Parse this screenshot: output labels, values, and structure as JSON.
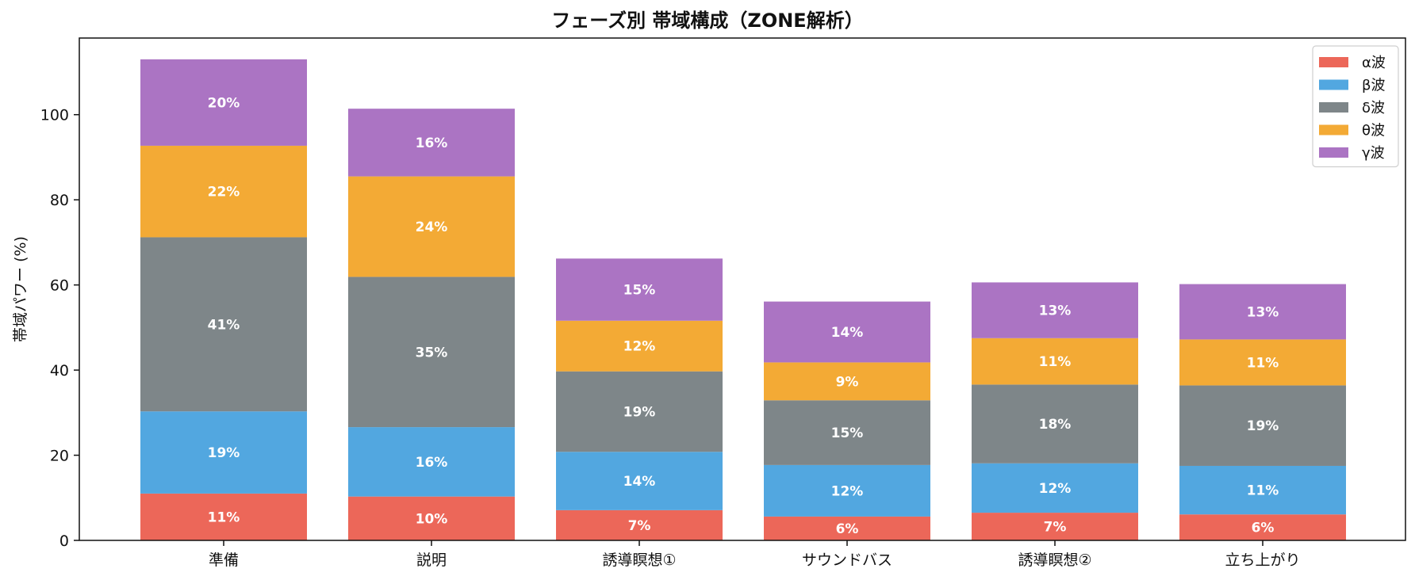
{
  "chart_data": {
    "type": "bar",
    "stacked": true,
    "title": "フェーズ別 帯域構成（ZONE解析）",
    "ylabel": "帯域パワー (%)",
    "xlabel": "",
    "ylim": [
      0,
      118
    ],
    "yticks": [
      0,
      20,
      40,
      60,
      80,
      100
    ],
    "legend_position": "top-right",
    "grid": false,
    "categories": [
      "準備",
      "説明",
      "誘導瞑想①",
      "サウンドバス",
      "誘導瞑想②",
      "立ち上がり"
    ],
    "series": [
      {
        "name": "α波",
        "color": "#ec6759",
        "values": [
          11,
          10.3,
          7.1,
          5.6,
          6.5,
          6.1
        ],
        "labels": [
          "11%",
          "10%",
          "7%",
          "6%",
          "7%",
          "6%"
        ]
      },
      {
        "name": "β波",
        "color": "#52a7e0",
        "values": [
          19.3,
          16.3,
          13.7,
          12.1,
          11.6,
          11.4
        ],
        "labels": [
          "19%",
          "16%",
          "14%",
          "12%",
          "12%",
          "11%"
        ]
      },
      {
        "name": "δ波",
        "color": "#7e8689",
        "values": [
          40.9,
          35.3,
          18.9,
          15.2,
          18.5,
          18.9
        ],
        "labels": [
          "41%",
          "35%",
          "19%",
          "15%",
          "18%",
          "19%"
        ]
      },
      {
        "name": "θ波",
        "color": "#f3aa35",
        "values": [
          21.5,
          23.6,
          11.9,
          8.9,
          10.9,
          10.8
        ],
        "labels": [
          "22%",
          "24%",
          "12%",
          "9%",
          "11%",
          "11%"
        ]
      },
      {
        "name": "γ波",
        "color": "#ab74c3",
        "values": [
          20.3,
          15.9,
          14.6,
          14.3,
          13.1,
          13.0
        ],
        "labels": [
          "20%",
          "16%",
          "15%",
          "14%",
          "13%",
          "13%"
        ]
      }
    ]
  }
}
